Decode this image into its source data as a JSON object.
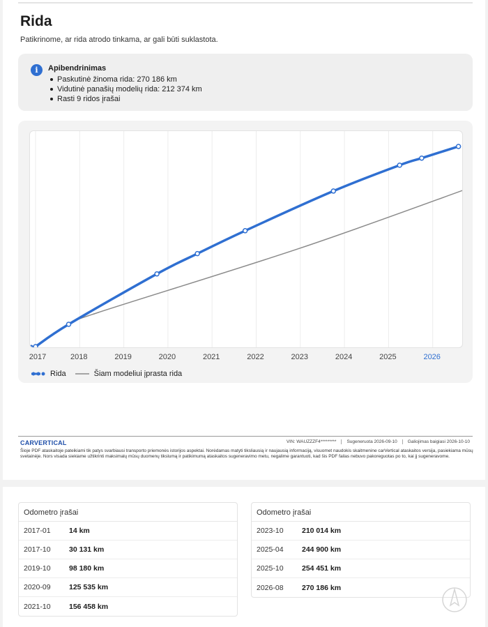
{
  "page": {
    "title": "Rida",
    "subtitle": "Patikrinome, ar rida atrodo tinkama, ar gali būti suklastota."
  },
  "summary": {
    "title": "Apibendrinimas",
    "items": [
      "Paskutinė žinoma rida: 270 186 km",
      "Vidutinė panašių modelių rida: 212 374 km",
      "Rasti 9 ridos įrašai"
    ]
  },
  "chart_data": {
    "type": "line",
    "x_tick_labels": [
      "2017",
      "2018",
      "2019",
      "2020",
      "2021",
      "2022",
      "2023",
      "2024",
      "2025",
      "2026"
    ],
    "highlighted_tick": "2026",
    "grid": "vertical",
    "legend_placement": "bottom-left",
    "series": [
      {
        "name": "Rida",
        "color": "#2f6fd1",
        "points": [
          {
            "x": "2017-01",
            "y": 14
          },
          {
            "x": "2017-10",
            "y": 30131
          },
          {
            "x": "2019-10",
            "y": 98180
          },
          {
            "x": "2020-09",
            "y": 125535
          },
          {
            "x": "2021-10",
            "y": 156458
          },
          {
            "x": "2023-10",
            "y": 210014
          },
          {
            "x": "2025-04",
            "y": 244900
          },
          {
            "x": "2025-10",
            "y": 254451
          },
          {
            "x": "2026-08",
            "y": 270186
          }
        ]
      },
      {
        "name": "Šiam modeliui įprasta rida",
        "color": "#8a8a8a",
        "points": [
          {
            "x": "2017-01",
            "y": 0
          },
          {
            "x": "2017-10",
            "y": 30131
          },
          {
            "x": "2018-06",
            "y": 46000
          },
          {
            "x": "2023-01",
            "y": 133000
          },
          {
            "x": "2026-10",
            "y": 212374
          }
        ]
      }
    ]
  },
  "footer": {
    "brand": "CARVERTICAL",
    "vin": "VIN: WAUZZZF4*********",
    "generated": "Sugeneruota 2026-09-10",
    "valid_until": "Galiojimas baigiasi 2026-10-10",
    "disclaimer": "Šioje PDF ataskaitoje pateikiami tik patys svarbiausi transporto priemonės istorijos aspektai. Norėdamas matyti tiksliausią ir naujausią informaciją, visuomet naudokis skaitmenine carVertical ataskaitos versija, pasiekiama mūsų svetainėje. Nors visada siekiame užtikrinti maksimalų mūsų duomenų tikslumą ir patikimumą ataskaitos sugeneravimo metu, negalime garantuoti, kad šis PDF failas nebuvo pakoreguotas po to, kai jį sugeneravome."
  },
  "odometer": {
    "left": {
      "title": "Odometro įrašai",
      "rows": [
        {
          "date": "2017-01",
          "km": "14 km"
        },
        {
          "date": "2017-10",
          "km": "30 131 km"
        },
        {
          "date": "2019-10",
          "km": "98 180 km"
        },
        {
          "date": "2020-09",
          "km": "125 535 km"
        },
        {
          "date": "2021-10",
          "km": "156 458 km"
        }
      ]
    },
    "right": {
      "title": "Odometro įrašai",
      "rows": [
        {
          "date": "2023-10",
          "km": "210 014 km"
        },
        {
          "date": "2025-04",
          "km": "244 900 km"
        },
        {
          "date": "2025-10",
          "km": "254 451 km"
        },
        {
          "date": "2026-08",
          "km": "270 186 km"
        }
      ]
    }
  }
}
